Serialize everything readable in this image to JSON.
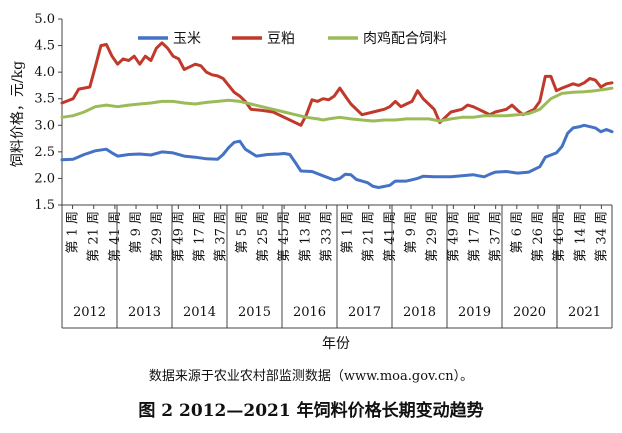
{
  "chart_data": {
    "type": "line",
    "title": "",
    "ylabel": "饲料价格，元/kg",
    "xlabel": "年份",
    "ylim": [
      1.5,
      5.0
    ],
    "yticks": [
      "1.5",
      "2.0",
      "2.5",
      "3.0",
      "3.5",
      "4.0",
      "4.5",
      "5.0"
    ],
    "grid": false,
    "legend": "top",
    "week_labels": [
      "第 1 周",
      "第 21 周",
      "第 41 周",
      "第 9 周",
      "第 29 周",
      "第 49 周",
      "第 17 周",
      "第 37 周",
      "第 5 周",
      "第 25 周",
      "第 45 周",
      "第 13 周",
      "第 33 周",
      "第 1 周",
      "第 21 周",
      "第 41 周",
      "第 9 周",
      "第 29 周",
      "第 49 周",
      "第 17 周",
      "第 37 周",
      "第 6 周",
      "第 26 周",
      "第 46 周",
      "第 14 周",
      "第 34 周"
    ],
    "years": [
      "2012",
      "2013",
      "2014",
      "2015",
      "2016",
      "2017",
      "2018",
      "2019",
      "2020",
      "2021"
    ],
    "series": [
      {
        "name": "玉米",
        "color": "#4472c4",
        "points": [
          [
            0,
            2.35
          ],
          [
            2,
            2.36
          ],
          [
            4,
            2.45
          ],
          [
            6,
            2.52
          ],
          [
            8,
            2.55
          ],
          [
            9,
            2.48
          ],
          [
            10,
            2.42
          ],
          [
            12,
            2.45
          ],
          [
            14,
            2.46
          ],
          [
            16,
            2.44
          ],
          [
            18,
            2.5
          ],
          [
            20,
            2.48
          ],
          [
            22,
            2.42
          ],
          [
            24,
            2.4
          ],
          [
            26,
            2.37
          ],
          [
            28,
            2.36
          ],
          [
            29,
            2.45
          ],
          [
            30,
            2.58
          ],
          [
            31,
            2.68
          ],
          [
            32,
            2.7
          ],
          [
            33,
            2.55
          ],
          [
            35,
            2.42
          ],
          [
            37,
            2.45
          ],
          [
            39,
            2.46
          ],
          [
            40,
            2.47
          ],
          [
            41,
            2.45
          ],
          [
            42,
            2.3
          ],
          [
            43,
            2.14
          ],
          [
            45,
            2.13
          ],
          [
            47,
            2.05
          ],
          [
            49,
            1.97
          ],
          [
            50,
            2.0
          ],
          [
            51,
            2.08
          ],
          [
            52,
            2.07
          ],
          [
            53,
            1.98
          ],
          [
            54,
            1.95
          ],
          [
            55,
            1.92
          ],
          [
            56,
            1.85
          ],
          [
            57,
            1.83
          ],
          [
            59,
            1.87
          ],
          [
            60,
            1.95
          ],
          [
            62,
            1.95
          ],
          [
            64,
            2.0
          ],
          [
            65,
            2.04
          ],
          [
            67,
            2.03
          ],
          [
            70,
            2.03
          ],
          [
            72,
            2.05
          ],
          [
            74,
            2.07
          ],
          [
            75,
            2.05
          ],
          [
            76,
            2.03
          ],
          [
            77,
            2.08
          ],
          [
            78,
            2.12
          ],
          [
            80,
            2.13
          ],
          [
            82,
            2.1
          ],
          [
            84,
            2.12
          ],
          [
            86,
            2.22
          ],
          [
            87,
            2.4
          ],
          [
            88,
            2.44
          ],
          [
            89,
            2.48
          ],
          [
            90,
            2.6
          ],
          [
            91,
            2.85
          ],
          [
            92,
            2.95
          ],
          [
            93,
            2.97
          ],
          [
            94,
            3.0
          ],
          [
            96,
            2.95
          ],
          [
            97,
            2.88
          ],
          [
            98,
            2.92
          ],
          [
            99,
            2.88
          ]
        ]
      },
      {
        "name": "豆粕",
        "color": "#c0392b",
        "points": [
          [
            0,
            3.42
          ],
          [
            2,
            3.5
          ],
          [
            3,
            3.68
          ],
          [
            5,
            3.72
          ],
          [
            6,
            4.1
          ],
          [
            7,
            4.5
          ],
          [
            8,
            4.52
          ],
          [
            9,
            4.3
          ],
          [
            10,
            4.15
          ],
          [
            11,
            4.25
          ],
          [
            12,
            4.22
          ],
          [
            13,
            4.3
          ],
          [
            14,
            4.15
          ],
          [
            15,
            4.3
          ],
          [
            16,
            4.22
          ],
          [
            17,
            4.45
          ],
          [
            18,
            4.55
          ],
          [
            19,
            4.45
          ],
          [
            20,
            4.3
          ],
          [
            21,
            4.25
          ],
          [
            22,
            4.05
          ],
          [
            23,
            4.1
          ],
          [
            24,
            4.15
          ],
          [
            25,
            4.12
          ],
          [
            26,
            4.0
          ],
          [
            27,
            3.95
          ],
          [
            28,
            3.93
          ],
          [
            29,
            3.88
          ],
          [
            30,
            3.75
          ],
          [
            31,
            3.62
          ],
          [
            32,
            3.55
          ],
          [
            33,
            3.45
          ],
          [
            34,
            3.3
          ],
          [
            36,
            3.28
          ],
          [
            38,
            3.25
          ],
          [
            40,
            3.15
          ],
          [
            42,
            3.05
          ],
          [
            43,
            3.0
          ],
          [
            44,
            3.2
          ],
          [
            45,
            3.48
          ],
          [
            46,
            3.45
          ],
          [
            47,
            3.5
          ],
          [
            48,
            3.48
          ],
          [
            49,
            3.55
          ],
          [
            50,
            3.7
          ],
          [
            51,
            3.55
          ],
          [
            52,
            3.4
          ],
          [
            54,
            3.2
          ],
          [
            56,
            3.25
          ],
          [
            58,
            3.3
          ],
          [
            59,
            3.35
          ],
          [
            60,
            3.45
          ],
          [
            61,
            3.35
          ],
          [
            62,
            3.4
          ],
          [
            63,
            3.45
          ],
          [
            64,
            3.65
          ],
          [
            65,
            3.5
          ],
          [
            66,
            3.4
          ],
          [
            67,
            3.3
          ],
          [
            68,
            3.05
          ],
          [
            69,
            3.15
          ],
          [
            70,
            3.25
          ],
          [
            72,
            3.3
          ],
          [
            73,
            3.38
          ],
          [
            74,
            3.35
          ],
          [
            75,
            3.3
          ],
          [
            76,
            3.25
          ],
          [
            77,
            3.2
          ],
          [
            78,
            3.25
          ],
          [
            80,
            3.3
          ],
          [
            81,
            3.38
          ],
          [
            82,
            3.28
          ],
          [
            83,
            3.2
          ],
          [
            84,
            3.25
          ],
          [
            85,
            3.3
          ],
          [
            86,
            3.45
          ],
          [
            87,
            3.92
          ],
          [
            88,
            3.92
          ],
          [
            89,
            3.65
          ],
          [
            90,
            3.7
          ],
          [
            92,
            3.78
          ],
          [
            93,
            3.75
          ],
          [
            94,
            3.8
          ],
          [
            95,
            3.88
          ],
          [
            96,
            3.85
          ],
          [
            97,
            3.72
          ],
          [
            98,
            3.78
          ],
          [
            99,
            3.8
          ]
        ]
      },
      {
        "name": "肉鸡配合饲料",
        "color": "#9bbb59",
        "points": [
          [
            0,
            3.15
          ],
          [
            2,
            3.18
          ],
          [
            4,
            3.25
          ],
          [
            6,
            3.35
          ],
          [
            8,
            3.38
          ],
          [
            10,
            3.35
          ],
          [
            12,
            3.38
          ],
          [
            14,
            3.4
          ],
          [
            16,
            3.42
          ],
          [
            18,
            3.45
          ],
          [
            20,
            3.45
          ],
          [
            22,
            3.42
          ],
          [
            24,
            3.4
          ],
          [
            26,
            3.43
          ],
          [
            28,
            3.45
          ],
          [
            30,
            3.47
          ],
          [
            32,
            3.45
          ],
          [
            34,
            3.4
          ],
          [
            36,
            3.35
          ],
          [
            38,
            3.3
          ],
          [
            40,
            3.25
          ],
          [
            42,
            3.2
          ],
          [
            44,
            3.15
          ],
          [
            46,
            3.12
          ],
          [
            47,
            3.1
          ],
          [
            48,
            3.12
          ],
          [
            50,
            3.15
          ],
          [
            52,
            3.12
          ],
          [
            54,
            3.1
          ],
          [
            56,
            3.08
          ],
          [
            58,
            3.1
          ],
          [
            60,
            3.1
          ],
          [
            62,
            3.12
          ],
          [
            64,
            3.12
          ],
          [
            66,
            3.12
          ],
          [
            68,
            3.08
          ],
          [
            70,
            3.12
          ],
          [
            72,
            3.15
          ],
          [
            74,
            3.15
          ],
          [
            76,
            3.18
          ],
          [
            78,
            3.18
          ],
          [
            80,
            3.18
          ],
          [
            82,
            3.2
          ],
          [
            84,
            3.22
          ],
          [
            86,
            3.3
          ],
          [
            88,
            3.5
          ],
          [
            90,
            3.6
          ],
          [
            92,
            3.62
          ],
          [
            94,
            3.63
          ],
          [
            96,
            3.65
          ],
          [
            98,
            3.68
          ],
          [
            99,
            3.7
          ]
        ]
      }
    ]
  },
  "source_note": "数据来源于农业农村部监测数据（www.moa.gov.cn）。",
  "figure_caption": "图 2  2012—2021 年饲料价格长期变动趋势"
}
